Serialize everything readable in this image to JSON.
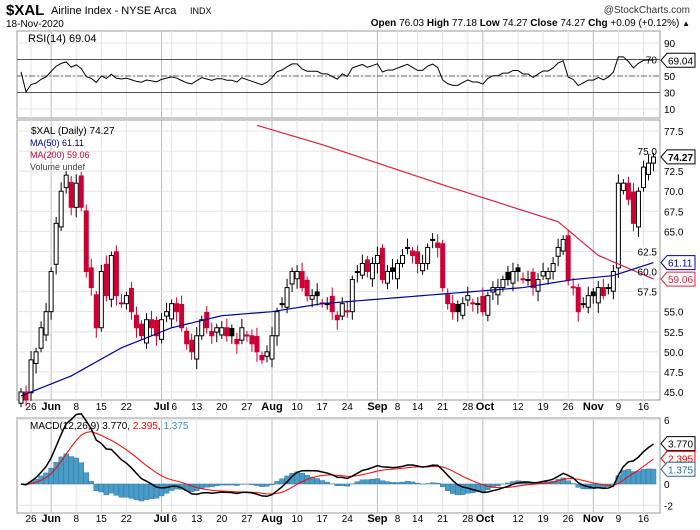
{
  "header": {
    "symbol": "$XAL",
    "name": "Airline Index - NYSE Arca",
    "exchange": "INDX",
    "watermark": "@StockCharts.com",
    "date": "18-Nov-2020",
    "open_label": "Open",
    "open": "76.03",
    "high_label": "High",
    "high": "77.18",
    "low_label": "Low",
    "low": "74.27",
    "close_label": "Close",
    "close": "74.27",
    "chg_label": "Chg",
    "chg": "+0.09 (+0.12%)",
    "chg_arrow": "▲"
  },
  "colors": {
    "up": "#000000",
    "down": "#cc0033",
    "ma50": "#000099",
    "ma200": "#dd2244",
    "macd": "#000000",
    "signal": "#ff0000",
    "hist": "#4a9cc8",
    "rsi_fill": "#5a7a5a"
  },
  "chart_data": [
    {
      "type": "line",
      "title": "RSI(14) 69.04",
      "legend": "RSI(14) 69.04",
      "current_tag": "69.04",
      "current": 69.04,
      "ylim": [
        0,
        100
      ],
      "yticks": [
        "90",
        "70",
        "50",
        "30",
        "10"
      ],
      "ytick_values": [
        90,
        70,
        50,
        30,
        10
      ],
      "reference_lines": [
        70,
        50,
        30
      ]
    },
    {
      "type": "candlestick",
      "legend": {
        "main": "$XAL (Daily) 74.27",
        "ma50": "MA(50) 61.11",
        "ma200": "MA(200) 59.06",
        "volume": "Volume undef"
      },
      "ylim": [
        44,
        78.2
      ],
      "yticks": [
        "77.5",
        "75.0",
        "72.5",
        "70.0",
        "67.5",
        "65.0",
        "62.5",
        "60.0",
        "57.5",
        "55.0",
        "52.5",
        "50.0",
        "47.5",
        "45.0"
      ],
      "ytick_values": [
        77.5,
        75,
        72.5,
        70,
        67.5,
        65,
        62.5,
        60,
        57.5,
        55,
        52.5,
        50,
        47.5,
        45
      ],
      "tags": {
        "close": "74.27",
        "ma50": "61.11",
        "ma200": "59.06"
      },
      "closes": [
        45,
        44,
        49,
        50,
        53,
        55,
        60,
        66,
        70,
        72,
        68,
        71,
        68,
        60,
        58,
        53,
        60,
        57,
        62,
        57,
        56,
        57,
        55,
        53,
        52,
        54,
        53,
        52,
        54,
        55,
        56,
        55,
        53,
        51,
        50,
        52,
        54,
        53,
        52,
        53,
        53,
        52,
        52,
        51,
        53,
        52,
        51,
        50,
        49,
        50,
        52,
        55,
        56,
        58,
        60,
        60,
        58,
        57,
        57,
        57,
        56,
        56,
        55,
        54,
        56,
        55,
        59,
        60,
        61,
        60,
        61,
        62,
        59,
        60,
        60,
        61,
        62,
        63,
        62,
        61,
        61,
        63,
        64,
        63,
        58,
        56,
        55,
        55,
        56,
        57,
        56,
        56,
        55,
        57,
        58,
        58,
        59,
        59,
        60,
        60,
        59,
        59,
        58,
        59,
        60,
        60,
        61,
        63,
        64,
        59,
        58,
        55,
        56,
        57,
        57,
        58,
        57,
        58,
        60,
        71,
        71,
        69,
        66,
        70,
        73,
        73.5,
        74.27
      ],
      "ma50": [
        [
          0,
          44.5
        ],
        [
          10,
          47
        ],
        [
          20,
          50.5
        ],
        [
          30,
          53
        ],
        [
          40,
          54.5
        ],
        [
          50,
          55
        ],
        [
          60,
          56
        ],
        [
          70,
          56.5
        ],
        [
          80,
          57
        ],
        [
          90,
          57.5
        ],
        [
          100,
          58
        ],
        [
          110,
          59
        ],
        [
          118,
          59.5
        ],
        [
          126,
          61.11
        ]
      ],
      "ma200": [
        [
          47,
          78.2
        ],
        [
          60,
          75.8
        ],
        [
          84,
          70.8
        ],
        [
          107,
          66.2
        ],
        [
          115,
          62
        ],
        [
          126,
          59.06
        ]
      ]
    },
    {
      "type": "line+bar",
      "legend_prefix": "MACD(12,26,9)",
      "macd": "3.770",
      "signal": "2.395",
      "histogram": "1.375",
      "ylim": [
        -2.6,
        6.2
      ],
      "yticks": [
        "6",
        "0",
        "-2"
      ],
      "ytick_values": [
        6,
        0,
        -2
      ]
    }
  ],
  "x_ticks": [
    {
      "label": "26",
      "idx": 2,
      "major": false
    },
    {
      "label": "Jun",
      "idx": 6,
      "major": true
    },
    {
      "label": "8",
      "idx": 11,
      "major": false
    },
    {
      "label": "15",
      "idx": 16,
      "major": false
    },
    {
      "label": "22",
      "idx": 21,
      "major": false
    },
    {
      "label": "Jul",
      "idx": 28,
      "major": true
    },
    {
      "label": "6",
      "idx": 30,
      "major": false
    },
    {
      "label": "13",
      "idx": 35,
      "major": false
    },
    {
      "label": "20",
      "idx": 40,
      "major": false
    },
    {
      "label": "27",
      "idx": 45,
      "major": false
    },
    {
      "label": "Aug",
      "idx": 50,
      "major": true
    },
    {
      "label": "10",
      "idx": 55,
      "major": false
    },
    {
      "label": "17",
      "idx": 60,
      "major": false
    },
    {
      "label": "24",
      "idx": 65,
      "major": false
    },
    {
      "label": "Sep",
      "idx": 71,
      "major": true
    },
    {
      "label": "8",
      "idx": 75,
      "major": false
    },
    {
      "label": "14",
      "idx": 79,
      "major": false
    },
    {
      "label": "21",
      "idx": 84,
      "major": false
    },
    {
      "label": "28",
      "idx": 89,
      "major": false
    },
    {
      "label": "Oct",
      "idx": 92,
      "major": true
    },
    {
      "label": "12",
      "idx": 99,
      "major": false
    },
    {
      "label": "19",
      "idx": 104,
      "major": false
    },
    {
      "label": "26",
      "idx": 109,
      "major": false
    },
    {
      "label": "Nov",
      "idx": 114,
      "major": true
    },
    {
      "label": "9",
      "idx": 119,
      "major": false
    },
    {
      "label": "16",
      "idx": 124,
      "major": false
    }
  ]
}
